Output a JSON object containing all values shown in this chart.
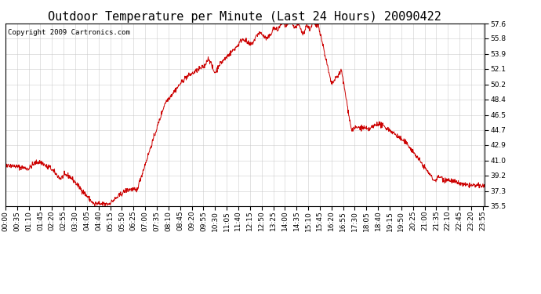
{
  "title": "Outdoor Temperature per Minute (Last 24 Hours) 20090422",
  "copyright_text": "Copyright 2009 Cartronics.com",
  "line_color": "#cc0000",
  "background_color": "#ffffff",
  "grid_color": "#c8c8c8",
  "yticks": [
    35.5,
    37.3,
    39.2,
    41.0,
    42.9,
    44.7,
    46.5,
    48.4,
    50.2,
    52.1,
    53.9,
    55.8,
    57.6
  ],
  "ymin": 35.5,
  "ymax": 57.6,
  "title_fontsize": 11,
  "annotation_fontsize": 6.5,
  "tick_fontsize": 6.5,
  "xtick_interval_minutes": 35,
  "total_minutes": 1440
}
